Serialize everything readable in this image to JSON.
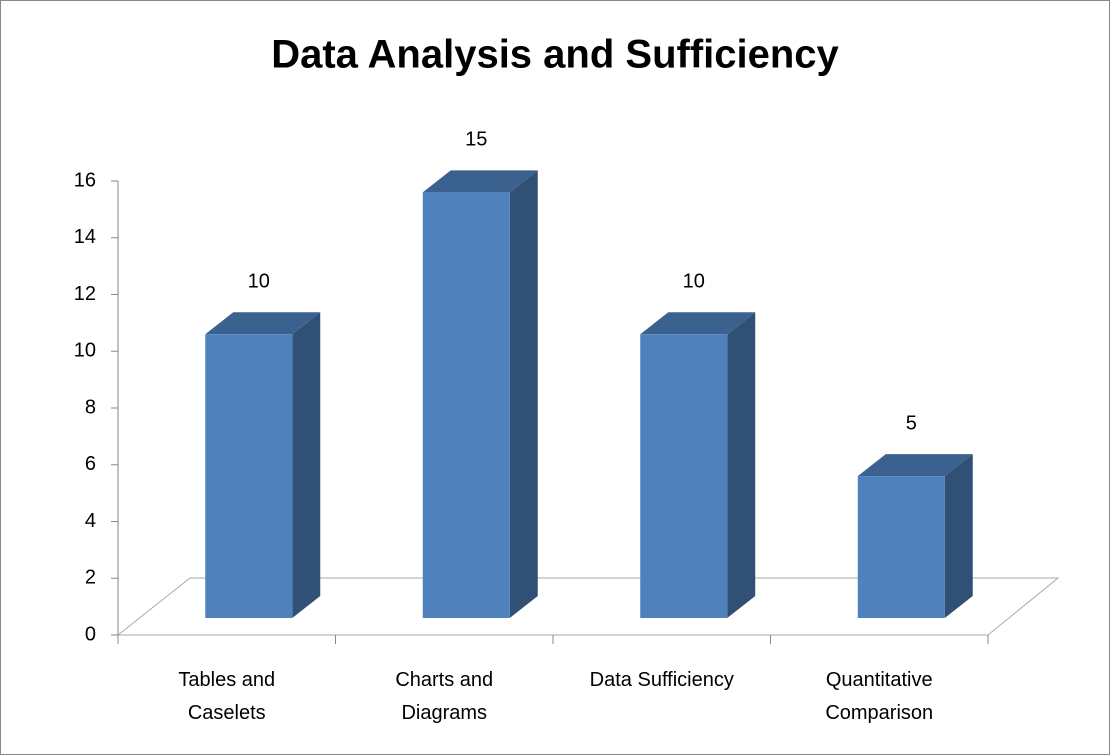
{
  "chart_data": {
    "type": "bar3d",
    "title": "Data Analysis and Sufficiency",
    "categories": [
      "Tables and Caselets",
      "Charts and Diagrams",
      "Data Sufficiency",
      "Quantitative Comparison"
    ],
    "values": [
      10,
      15,
      10,
      5
    ],
    "color": "#4f81bd",
    "ylim": [
      0,
      16
    ],
    "yticks": [
      0,
      2,
      4,
      6,
      8,
      10,
      12,
      14,
      16
    ],
    "grid": false
  }
}
